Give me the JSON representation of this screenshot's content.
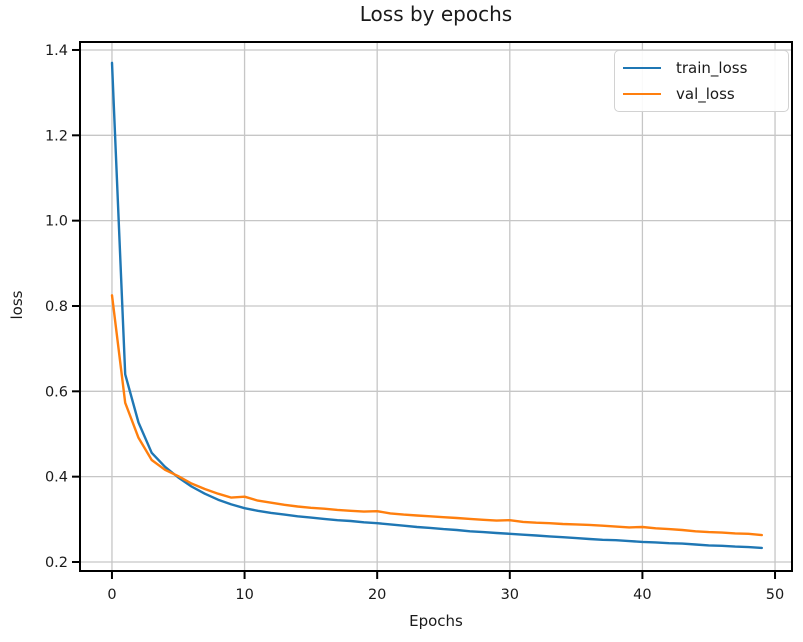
{
  "chart_data": {
    "type": "line",
    "title": "Loss by epochs",
    "xlabel": "Epochs",
    "ylabel": "loss",
    "x": [
      0,
      1,
      2,
      3,
      4,
      5,
      6,
      7,
      8,
      9,
      10,
      11,
      12,
      13,
      14,
      15,
      16,
      17,
      18,
      19,
      20,
      21,
      22,
      23,
      24,
      25,
      26,
      27,
      28,
      29,
      30,
      31,
      32,
      33,
      34,
      35,
      36,
      37,
      38,
      39,
      40,
      41,
      42,
      43,
      44,
      45,
      46,
      47,
      48,
      49
    ],
    "series": [
      {
        "name": "train_loss",
        "color": "#1f77b4",
        "values": [
          1.37,
          0.64,
          0.527,
          0.456,
          0.423,
          0.398,
          0.377,
          0.36,
          0.346,
          0.335,
          0.326,
          0.32,
          0.315,
          0.311,
          0.307,
          0.304,
          0.301,
          0.298,
          0.296,
          0.293,
          0.291,
          0.288,
          0.285,
          0.282,
          0.28,
          0.277,
          0.275,
          0.272,
          0.27,
          0.268,
          0.266,
          0.264,
          0.262,
          0.26,
          0.258,
          0.256,
          0.254,
          0.252,
          0.251,
          0.249,
          0.247,
          0.246,
          0.244,
          0.243,
          0.241,
          0.239,
          0.238,
          0.236,
          0.235,
          0.233
        ]
      },
      {
        "name": "val_loss",
        "color": "#ff7f0e",
        "values": [
          0.825,
          0.573,
          0.491,
          0.439,
          0.416,
          0.401,
          0.384,
          0.371,
          0.36,
          0.351,
          0.353,
          0.344,
          0.339,
          0.334,
          0.33,
          0.327,
          0.325,
          0.322,
          0.32,
          0.318,
          0.319,
          0.314,
          0.311,
          0.309,
          0.307,
          0.305,
          0.303,
          0.301,
          0.299,
          0.297,
          0.298,
          0.294,
          0.292,
          0.291,
          0.289,
          0.288,
          0.287,
          0.285,
          0.283,
          0.281,
          0.282,
          0.279,
          0.277,
          0.275,
          0.272,
          0.27,
          0.269,
          0.267,
          0.266,
          0.263
        ]
      }
    ],
    "xlim": [
      -2.41,
      51.28
    ],
    "ylim": [
      0.1789,
      1.4187
    ],
    "xticks": [
      0,
      10,
      20,
      30,
      40,
      50
    ],
    "xtick_labels": [
      "0",
      "10",
      "20",
      "30",
      "40",
      "50"
    ],
    "yticks": [
      0.2,
      0.4,
      0.6,
      0.8,
      1.0,
      1.2,
      1.4
    ],
    "ytick_labels": [
      "0.2",
      "0.4",
      "0.6",
      "0.8",
      "1.0",
      "1.2",
      "1.4"
    ],
    "grid": true,
    "legend": {
      "position": "upper right",
      "entries": [
        "train_loss",
        "val_loss"
      ]
    },
    "colors": {
      "grid": "#c6c6c6",
      "spine": "#000000",
      "text": "#1a1a1a",
      "legend_border": "#d2d2d2",
      "background": "#ffffff"
    }
  }
}
